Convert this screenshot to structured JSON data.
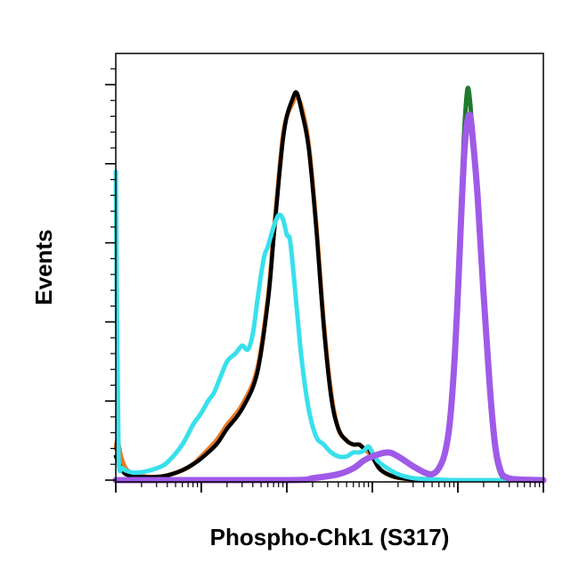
{
  "chart_data": {
    "type": "line",
    "title": "",
    "xlabel": "Phospho-Chk1 (S317)",
    "ylabel": "Events",
    "x_scale": "log",
    "xlim": [
      1,
      100000
    ],
    "ylim": [
      0,
      100
    ],
    "grid": false,
    "legend": "none",
    "series": [
      {
        "color": "#e87722",
        "x": [
          1,
          1.05,
          1.15,
          1.3,
          1.6,
          2,
          3,
          4,
          6,
          8,
          10,
          15,
          20,
          30,
          45,
          60,
          70,
          80,
          90,
          100,
          115,
          130,
          150,
          180,
          220,
          270,
          330,
          400,
          500,
          600,
          700,
          800,
          900,
          1000,
          1200,
          1500,
          2000,
          3000,
          5000,
          10000,
          100000
        ],
        "y": [
          8,
          10,
          6,
          3,
          1.5,
          1,
          0.8,
          1.2,
          2.5,
          4,
          6,
          10,
          14,
          19,
          28,
          46,
          62,
          76,
          87,
          92,
          95,
          97,
          94,
          85,
          65,
          40,
          22,
          13,
          10,
          9,
          9,
          8,
          7,
          6,
          3,
          1.5,
          0.6,
          0.2,
          0.1,
          0,
          0
        ]
      },
      {
        "color": "#000000",
        "x": [
          1,
          1.05,
          1.15,
          1.3,
          1.6,
          2,
          3,
          4,
          6,
          8,
          10,
          15,
          20,
          30,
          45,
          60,
          70,
          80,
          90,
          100,
          115,
          130,
          150,
          180,
          220,
          270,
          330,
          400,
          500,
          600,
          700,
          800,
          900,
          1000,
          1200,
          1500,
          2000,
          3000,
          5000,
          10000,
          100000
        ],
        "y": [
          6,
          5,
          3,
          1.5,
          1,
          0.8,
          0.8,
          1.2,
          2.5,
          4,
          5.5,
          9,
          13,
          18,
          27,
          45,
          61,
          75,
          86,
          92,
          96,
          98,
          93,
          84,
          64,
          39,
          21,
          13,
          10,
          9,
          9,
          8,
          8,
          6,
          3,
          1.5,
          0.6,
          0.2,
          0.1,
          0,
          0
        ]
      },
      {
        "color": "#38e0ec",
        "x": [
          1,
          1.08,
          1.2,
          1.5,
          2,
          3,
          4,
          6,
          8,
          10,
          12,
          14,
          16,
          20,
          25,
          30,
          35,
          40,
          45,
          50,
          55,
          60,
          70,
          80,
          90,
          100,
          110,
          130,
          150,
          180,
          220,
          270,
          330,
          400,
          500,
          600,
          700,
          800,
          900,
          1000,
          1100,
          1200,
          1500,
          2000,
          3000,
          5000,
          10000,
          100000
        ],
        "y": [
          78,
          5,
          3,
          2,
          2,
          3,
          4.5,
          9,
          14,
          17,
          20,
          22,
          25,
          30,
          32,
          34,
          33,
          37,
          45,
          52,
          57,
          59,
          64,
          67,
          66,
          62,
          60,
          44,
          30,
          18,
          11,
          9,
          7,
          6,
          6,
          7,
          7,
          7.5,
          8.5,
          7,
          5.5,
          4.5,
          3,
          1.5,
          0.5,
          0.2,
          0,
          0
        ]
      },
      {
        "color": "#1f7a2e",
        "x": [
          1,
          100,
          200,
          400,
          600,
          800,
          1000,
          1500,
          2000,
          3000,
          4000,
          5000,
          6000,
          7000,
          8000,
          9000,
          10000,
          11000,
          12000,
          13000,
          14000,
          15000,
          17000,
          20000,
          25000,
          30000,
          40000,
          100000
        ],
        "y": [
          0,
          0,
          0.5,
          1.5,
          3,
          5,
          6,
          7,
          6,
          3.5,
          2,
          1.5,
          3,
          7,
          15,
          30,
          50,
          72,
          90,
          99,
          95,
          85,
          70,
          45,
          15,
          3,
          0.3,
          0
        ]
      },
      {
        "color": "#a05ae8",
        "x": [
          1,
          100,
          200,
          400,
          600,
          800,
          1000,
          1500,
          2000,
          3000,
          4000,
          5000,
          6000,
          7000,
          8000,
          9000,
          10000,
          11000,
          12000,
          13000,
          14000,
          15000,
          17000,
          20000,
          25000,
          30000,
          40000,
          100000
        ],
        "y": [
          0,
          0,
          0.5,
          1.5,
          3,
          5,
          6,
          7,
          6,
          3.5,
          2,
          1.5,
          3,
          6.5,
          14,
          28,
          47,
          68,
          84,
          91,
          92,
          86,
          72,
          47,
          17,
          4,
          0.4,
          0
        ]
      }
    ]
  }
}
